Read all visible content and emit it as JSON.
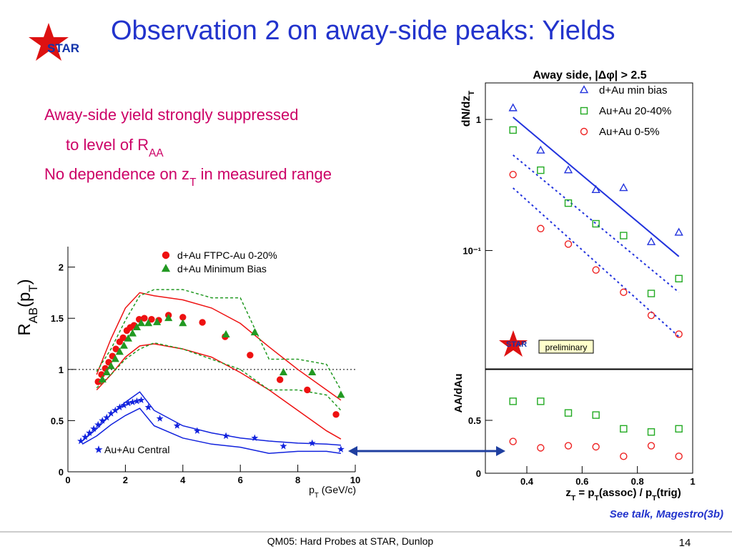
{
  "slide": {
    "title": "Observation 2 on away-side peaks: Yields",
    "logo": "STAR",
    "lines": [
      [
        {
          "t": "Away-side yield strongly suppressed"
        }
      ],
      [
        {
          "t": "to level of R"
        },
        {
          "t": "AA",
          "sub": true
        }
      ],
      [
        {
          "t": "No dependence on z"
        },
        {
          "t": "T",
          "sub": true
        },
        {
          "t": " in measured range"
        }
      ]
    ],
    "note": "See talk, Magestro(3b)",
    "footer": "QM05: Hard Probes at STAR, Dunlop",
    "page": "14"
  },
  "chart_data": [
    {
      "type": "scatter",
      "xlim": [
        0,
        10
      ],
      "ylim": [
        0,
        2.2
      ],
      "xticks": [
        0,
        2,
        4,
        6,
        8,
        10
      ],
      "yticks": [
        0,
        0.5,
        1,
        1.5,
        2
      ],
      "x_label": [
        {
          "t": "p"
        },
        {
          "t": "T",
          "sub": true
        },
        {
          "t": " (GeV/c)"
        }
      ],
      "y_label": [
        {
          "t": "R"
        },
        {
          "t": "AB",
          "sub": true
        },
        {
          "t": "(p"
        },
        {
          "t": "T",
          "sub": true
        },
        {
          "t": ")"
        }
      ],
      "reference_line": 1,
      "series": [
        {
          "name": "d+Au FTPC-Au 0-20%",
          "color": "#ee1111",
          "marker": "circle",
          "filled": true,
          "x": [
            1.05,
            1.17,
            1.3,
            1.42,
            1.55,
            1.67,
            1.8,
            1.92,
            2.05,
            2.17,
            2.3,
            2.48,
            2.66,
            2.91,
            3.16,
            3.5,
            4.0,
            4.68,
            5.47,
            6.34,
            7.38,
            8.33,
            9.33
          ],
          "values": [
            0.88,
            0.95,
            1.01,
            1.07,
            1.13,
            1.2,
            1.27,
            1.31,
            1.38,
            1.41,
            1.43,
            1.49,
            1.5,
            1.49,
            1.48,
            1.53,
            1.51,
            1.46,
            1.32,
            1.14,
            0.9,
            0.8,
            0.56
          ]
        },
        {
          "name": "d+Au Minimum Bias",
          "color": "#229922",
          "marker": "triangle",
          "filled": true,
          "x": [
            1.2,
            1.35,
            1.5,
            1.65,
            1.8,
            1.95,
            2.1,
            2.25,
            2.4,
            2.55,
            2.8,
            3.1,
            3.5,
            4.0,
            5.5,
            6.5,
            7.5,
            8.5,
            9.5
          ],
          "values": [
            0.9,
            0.97,
            1.03,
            1.1,
            1.17,
            1.23,
            1.3,
            1.35,
            1.41,
            1.45,
            1.45,
            1.46,
            1.5,
            1.45,
            1.34,
            1.36,
            0.97,
            0.97,
            0.75
          ]
        },
        {
          "name": "Au+Au Central",
          "color": "#1122dd",
          "marker": "star",
          "filled": true,
          "x": [
            0.45,
            0.6,
            0.75,
            0.9,
            1.05,
            1.2,
            1.35,
            1.5,
            1.65,
            1.8,
            1.95,
            2.1,
            2.25,
            2.4,
            2.55,
            2.8,
            3.2,
            3.8,
            4.5,
            5.5,
            6.5,
            7.5,
            8.5,
            9.5
          ],
          "values": [
            0.3,
            0.34,
            0.38,
            0.42,
            0.46,
            0.5,
            0.53,
            0.57,
            0.6,
            0.63,
            0.65,
            0.67,
            0.68,
            0.69,
            0.7,
            0.63,
            0.52,
            0.45,
            0.4,
            0.35,
            0.33,
            0.25,
            0.28,
            0.22
          ]
        }
      ],
      "bands": [
        {
          "color": "#ee1111",
          "dashed": false,
          "x": [
            1,
            1.5,
            2,
            2.5,
            3,
            4,
            5,
            6,
            7,
            8,
            9,
            9.5
          ],
          "upper": [
            0.95,
            1.3,
            1.6,
            1.75,
            1.72,
            1.68,
            1.6,
            1.45,
            1.22,
            1.0,
            0.8,
            0.7
          ],
          "lower": [
            0.8,
            0.95,
            1.12,
            1.23,
            1.25,
            1.2,
            1.12,
            0.97,
            0.8,
            0.6,
            0.4,
            0.32
          ]
        },
        {
          "color": "#229922",
          "dashed": true,
          "x": [
            1,
            1.5,
            2,
            2.5,
            3,
            4,
            5,
            6,
            7,
            8,
            9,
            9.5
          ],
          "upper": [
            0.98,
            1.2,
            1.48,
            1.72,
            1.78,
            1.78,
            1.7,
            1.7,
            1.1,
            1.1,
            1.05,
            0.8
          ],
          "lower": [
            0.82,
            0.95,
            1.1,
            1.2,
            1.26,
            1.2,
            1.1,
            1.0,
            0.8,
            0.8,
            0.75,
            0.6
          ]
        },
        {
          "color": "#1122dd",
          "dashed": false,
          "x": [
            0.5,
            1,
            1.5,
            2,
            2.5,
            3,
            4,
            5,
            6,
            7,
            8,
            9,
            9.5
          ],
          "upper": [
            0.3,
            0.42,
            0.56,
            0.68,
            0.78,
            0.6,
            0.45,
            0.38,
            0.33,
            0.3,
            0.28,
            0.27,
            0.26
          ],
          "lower": [
            0.27,
            0.35,
            0.46,
            0.55,
            0.62,
            0.45,
            0.33,
            0.27,
            0.24,
            0.18,
            0.2,
            0.2,
            0.18
          ]
        }
      ]
    },
    {
      "type": "scatter",
      "title": "Away side, |Δφ| > 2.5",
      "log_y": true,
      "xlim": [
        0.25,
        1
      ],
      "ylim": [
        0.0125,
        1.9
      ],
      "yticks": [
        1,
        {
          "value": 0.1,
          "label": "10⁻¹"
        }
      ],
      "y_label": [
        {
          "t": "dN/dz"
        },
        {
          "t": "T",
          "sub": true
        }
      ],
      "annotation": "preliminary",
      "logo": "STAR",
      "series": [
        {
          "name": "d+Au min bias",
          "color": "#2233dd",
          "marker": "triangle",
          "filled": false,
          "x": [
            0.35,
            0.45,
            0.55,
            0.65,
            0.75,
            0.85,
            0.95
          ],
          "values": [
            1.22,
            0.58,
            0.41,
            0.29,
            0.3,
            0.116,
            0.137
          ]
        },
        {
          "name": "Au+Au 20-40%",
          "color": "#22aa22",
          "marker": "square",
          "filled": false,
          "x": [
            0.35,
            0.45,
            0.55,
            0.65,
            0.75,
            0.85,
            0.95
          ],
          "values": [
            0.83,
            0.41,
            0.23,
            0.16,
            0.13,
            0.047,
            0.061
          ]
        },
        {
          "name": "Au+Au 0-5%",
          "color": "#ee2222",
          "marker": "circle",
          "filled": false,
          "x": [
            0.35,
            0.45,
            0.55,
            0.65,
            0.75,
            0.85,
            0.95
          ],
          "values": [
            0.38,
            0.147,
            0.112,
            0.071,
            0.048,
            0.032,
            0.023
          ]
        }
      ],
      "fits": [
        {
          "color": "#2233dd",
          "dashed": false,
          "x": [
            0.35,
            0.95
          ],
          "values": [
            1.04,
            0.09
          ]
        },
        {
          "color": "#2233dd",
          "dashed": true,
          "x": [
            0.35,
            0.95
          ],
          "values": [
            0.535,
            0.048
          ]
        },
        {
          "color": "#2233dd",
          "dashed": true,
          "x": [
            0.35,
            0.95
          ],
          "values": [
            0.3,
            0.022
          ]
        }
      ]
    },
    {
      "type": "scatter",
      "xlim": [
        0.25,
        1
      ],
      "ylim": [
        0,
        0.98
      ],
      "xticks": [
        0.4,
        0.6,
        0.8,
        1
      ],
      "yticks": [
        0,
        0.5
      ],
      "x_label": [
        {
          "t": "z"
        },
        {
          "t": "T",
          "sub": true
        },
        {
          "t": " = p"
        },
        {
          "t": "T",
          "sub": true
        },
        {
          "t": "(assoc) / p"
        },
        {
          "t": "T",
          "sub": true
        },
        {
          "t": "(trig)"
        }
      ],
      "y_label": [
        {
          "t": "AA/dAu"
        }
      ],
      "series": [
        {
          "color": "#22aa22",
          "marker": "square",
          "filled": false,
          "x": [
            0.35,
            0.45,
            0.55,
            0.65,
            0.75,
            0.85,
            0.95
          ],
          "values": [
            0.68,
            0.68,
            0.57,
            0.55,
            0.42,
            0.39,
            0.42
          ]
        },
        {
          "color": "#ee2222",
          "marker": "circle",
          "filled": false,
          "x": [
            0.35,
            0.45,
            0.55,
            0.65,
            0.75,
            0.85,
            0.95
          ],
          "values": [
            0.3,
            0.24,
            0.26,
            0.25,
            0.16,
            0.26,
            0.16
          ]
        }
      ]
    }
  ]
}
